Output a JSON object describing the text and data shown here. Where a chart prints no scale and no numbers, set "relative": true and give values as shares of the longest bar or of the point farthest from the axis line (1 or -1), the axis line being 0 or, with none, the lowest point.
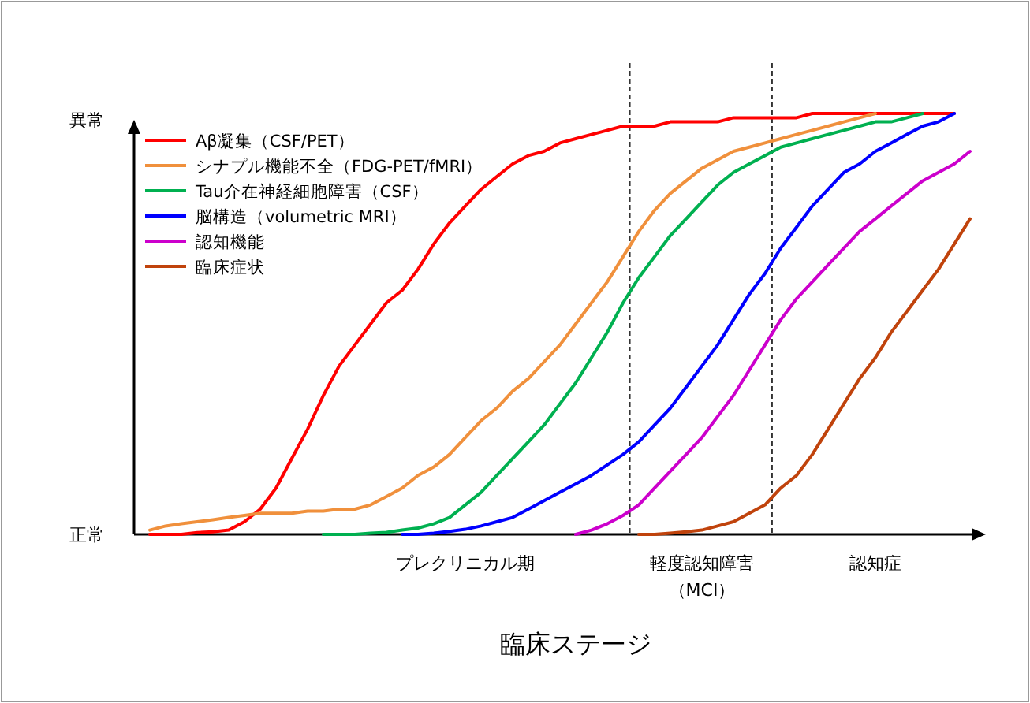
{
  "chart_data": {
    "type": "line",
    "xlabel": "臨床ステージ",
    "categories": [
      null,
      null,
      null,
      null,
      null,
      null,
      null,
      null,
      null,
      null,
      null,
      null,
      null,
      null,
      null,
      null,
      null,
      null,
      null,
      null,
      null,
      "プレクリニカル期",
      null,
      null,
      null,
      null,
      null,
      null,
      null,
      null,
      null,
      null,
      null,
      null,
      null,
      null,
      "軽度認知障害（MCI）",
      null,
      null,
      null,
      null,
      null,
      null,
      null,
      null,
      null,
      null,
      "認知症",
      null,
      null,
      null,
      null,
      null,
      null
    ],
    "relative": true,
    "annotations": [
      "正常",
      "異常"
    ],
    "legend": "top left",
    "line_style": "solid",
    "marker": "none",
    "series": [
      {
        "name": "Aβ凝集（CSF/PET）",
        "color": "#ff0000",
        "values": [
          null,
          0,
          0,
          0,
          0.004,
          0.006,
          0.01,
          0.03,
          0.06,
          0.11,
          0.18,
          0.25,
          0.33,
          0.4,
          0.45,
          0.5,
          0.55,
          0.58,
          0.63,
          0.69,
          0.74,
          0.78,
          0.82,
          0.85,
          0.88,
          0.9,
          0.91,
          0.93,
          0.94,
          0.95,
          0.96,
          0.97,
          0.97,
          0.97,
          0.98,
          0.98,
          0.98,
          0.98,
          0.99,
          0.99,
          0.99,
          0.99,
          0.99,
          1,
          1,
          1,
          1,
          1,
          1,
          1,
          1,
          1,
          1,
          null
        ]
      },
      {
        "name": "シナプル機能不全（FDG-PET/fMRI）",
        "color": "#f0903c",
        "values": [
          null,
          0.01,
          0.02,
          0.025,
          0.03,
          0.035,
          0.04,
          0.045,
          0.05,
          0.05,
          0.05,
          0.055,
          0.055,
          0.06,
          0.06,
          0.07,
          0.09,
          0.11,
          0.14,
          0.16,
          0.19,
          0.23,
          0.27,
          0.3,
          0.34,
          0.37,
          0.41,
          0.45,
          0.5,
          0.55,
          0.6,
          0.66,
          0.72,
          0.77,
          0.81,
          0.84,
          0.87,
          0.89,
          0.91,
          0.92,
          0.93,
          0.94,
          0.95,
          0.96,
          0.97,
          0.98,
          0.99,
          1,
          null,
          null,
          null,
          null,
          null,
          null
        ]
      },
      {
        "name": "Tau介在神経細胞障害（CSF）",
        "color": "#00b050",
        "values": [
          null,
          null,
          null,
          null,
          null,
          null,
          null,
          null,
          null,
          null,
          null,
          null,
          0,
          0,
          0,
          0.003,
          0.005,
          0.01,
          0.015,
          0.025,
          0.04,
          0.07,
          0.1,
          0.14,
          0.18,
          0.22,
          0.26,
          0.31,
          0.36,
          0.42,
          0.48,
          0.55,
          0.61,
          0.66,
          0.71,
          0.75,
          0.79,
          0.83,
          0.86,
          0.88,
          0.9,
          0.92,
          0.93,
          0.94,
          0.95,
          0.96,
          0.97,
          0.98,
          0.98,
          0.99,
          1,
          null,
          null,
          null
        ]
      },
      {
        "name": "脳構造（volumetric MRI）",
        "color": "#0000ff",
        "values": [
          null,
          null,
          null,
          null,
          null,
          null,
          null,
          null,
          null,
          null,
          null,
          null,
          null,
          null,
          null,
          null,
          null,
          0,
          0,
          0.003,
          0.007,
          0.012,
          0.02,
          0.03,
          0.04,
          0.06,
          0.08,
          0.1,
          0.12,
          0.14,
          0.165,
          0.19,
          0.22,
          0.26,
          0.3,
          0.35,
          0.4,
          0.45,
          0.51,
          0.57,
          0.62,
          0.68,
          0.73,
          0.78,
          0.82,
          0.86,
          0.88,
          0.91,
          0.93,
          0.95,
          0.97,
          0.98,
          1,
          null
        ]
      },
      {
        "name": "認知機能",
        "color": "#cc00cc",
        "values": [
          null,
          null,
          null,
          null,
          null,
          null,
          null,
          null,
          null,
          null,
          null,
          null,
          null,
          null,
          null,
          null,
          null,
          null,
          null,
          null,
          null,
          null,
          null,
          null,
          null,
          null,
          null,
          null,
          0,
          0.01,
          0.025,
          0.045,
          0.07,
          0.11,
          0.15,
          0.19,
          0.23,
          0.28,
          0.33,
          0.39,
          0.45,
          0.51,
          0.56,
          0.6,
          0.64,
          0.68,
          0.72,
          0.75,
          0.78,
          0.81,
          0.84,
          0.86,
          0.88,
          0.91
        ]
      },
      {
        "name": "臨床症状",
        "color": "#c0430c",
        "values": [
          null,
          null,
          null,
          null,
          null,
          null,
          null,
          null,
          null,
          null,
          null,
          null,
          null,
          null,
          null,
          null,
          null,
          null,
          null,
          null,
          null,
          null,
          null,
          null,
          null,
          null,
          null,
          null,
          null,
          null,
          null,
          null,
          0,
          0,
          0.003,
          0.006,
          0.01,
          0.02,
          0.03,
          0.05,
          0.07,
          0.11,
          0.14,
          0.19,
          0.25,
          0.31,
          0.37,
          0.42,
          0.48,
          0.53,
          0.58,
          0.63,
          0.69,
          0.75
        ]
      }
    ]
  }
}
